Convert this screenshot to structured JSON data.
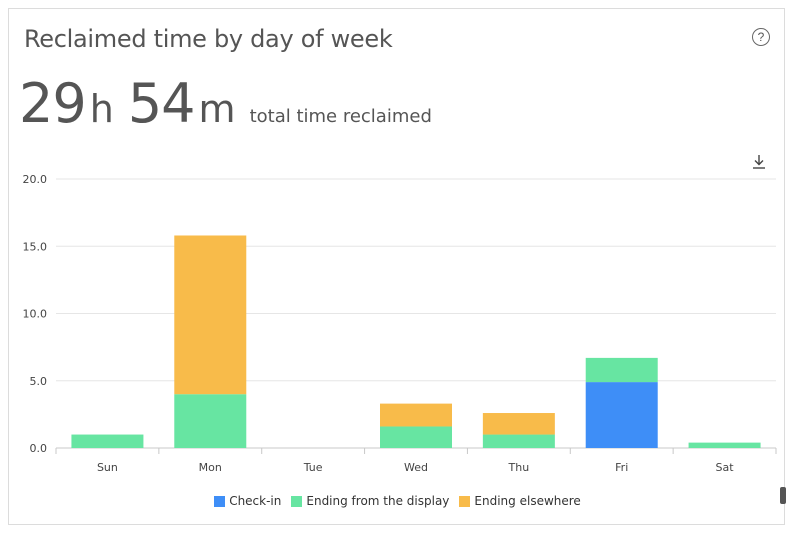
{
  "card": {
    "title": "Reclaimed time by day of week",
    "help_glyph": "?",
    "total_hours": "29",
    "hours_unit": "h",
    "total_minutes": "54",
    "minutes_unit": "m",
    "total_label": "total time reclaimed",
    "download_icon": "download-icon"
  },
  "chart_data": {
    "type": "bar",
    "stacked": true,
    "categories": [
      "Sun",
      "Mon",
      "Tue",
      "Wed",
      "Thu",
      "Fri",
      "Sat"
    ],
    "series": [
      {
        "name": "Check-in",
        "color": "#3e8ef7",
        "values": [
          0,
          0,
          0,
          0,
          0,
          4.9,
          0
        ]
      },
      {
        "name": "Ending from the display",
        "color": "#67e5a2",
        "values": [
          1.0,
          4.0,
          0,
          1.6,
          1.0,
          1.8,
          0.4
        ]
      },
      {
        "name": "Ending elsewhere",
        "color": "#f8bb4a",
        "values": [
          0,
          11.8,
          0,
          1.7,
          1.6,
          0,
          0
        ]
      }
    ],
    "yticks": [
      "0.0",
      "5.0",
      "10.0",
      "15.0",
      "20.0"
    ],
    "ylim": [
      0,
      20
    ],
    "grid": true,
    "legend_position": "bottom"
  }
}
